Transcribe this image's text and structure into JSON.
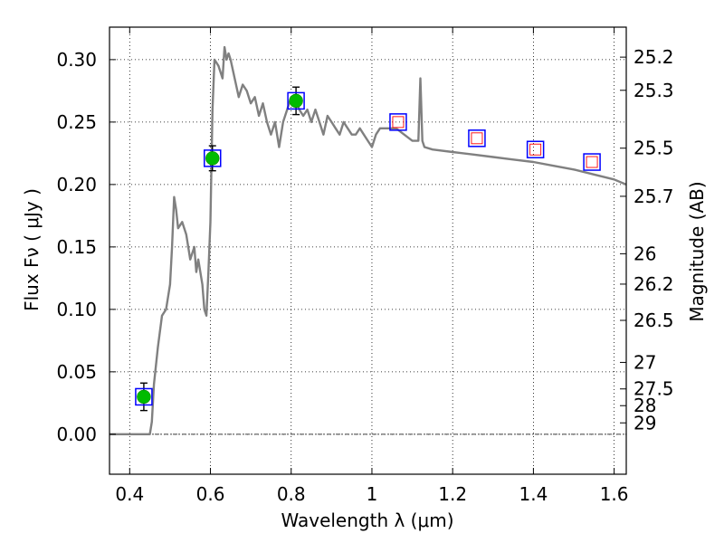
{
  "chart_data": {
    "type": "scatter",
    "xlabel": "Wavelength  λ (μm)",
    "ylabel": "Flux  Fν  ( μJy )",
    "y2label": "Magnitude (AB)",
    "xlim": [
      0.35,
      1.63
    ],
    "ylim": [
      -0.032,
      0.326
    ],
    "grid": true,
    "x_ticks": [
      {
        "value": 0.4,
        "label": "0.4"
      },
      {
        "value": 0.6,
        "label": "0.6"
      },
      {
        "value": 0.8,
        "label": "0.8"
      },
      {
        "value": 1.0,
        "label": "1"
      },
      {
        "value": 1.2,
        "label": "1.2"
      },
      {
        "value": 1.4,
        "label": "1.4"
      },
      {
        "value": 1.6,
        "label": "1.6"
      }
    ],
    "y_ticks": [
      {
        "value": 0.0,
        "label": "0.00"
      },
      {
        "value": 0.05,
        "label": "0.05"
      },
      {
        "value": 0.1,
        "label": "0.10"
      },
      {
        "value": 0.15,
        "label": "0.15"
      },
      {
        "value": 0.2,
        "label": "0.20"
      },
      {
        "value": 0.25,
        "label": "0.25"
      },
      {
        "value": 0.3,
        "label": "0.30"
      }
    ],
    "mag_ticks": [
      "25.2",
      "25.3",
      "25.5",
      "25.7",
      "26",
      "26.2",
      "26.5",
      "27",
      "27.5",
      "28",
      "29"
    ],
    "template_spectrum": {
      "color": "#808080",
      "x": [
        0.35,
        0.45,
        0.455,
        0.46,
        0.47,
        0.48,
        0.49,
        0.5,
        0.505,
        0.51,
        0.515,
        0.52,
        0.53,
        0.54,
        0.55,
        0.56,
        0.565,
        0.57,
        0.58,
        0.585,
        0.59,
        0.595,
        0.6,
        0.605,
        0.61,
        0.62,
        0.63,
        0.635,
        0.64,
        0.645,
        0.65,
        0.66,
        0.67,
        0.68,
        0.69,
        0.7,
        0.71,
        0.72,
        0.73,
        0.74,
        0.75,
        0.76,
        0.77,
        0.78,
        0.79,
        0.8,
        0.81,
        0.82,
        0.83,
        0.84,
        0.85,
        0.86,
        0.87,
        0.88,
        0.89,
        0.9,
        0.91,
        0.92,
        0.93,
        0.94,
        0.95,
        0.96,
        0.97,
        0.98,
        0.99,
        1.0,
        1.01,
        1.02,
        1.04,
        1.06,
        1.08,
        1.1,
        1.115,
        1.12,
        1.125,
        1.13,
        1.15,
        1.2,
        1.25,
        1.3,
        1.35,
        1.4,
        1.45,
        1.5,
        1.55,
        1.6,
        1.63
      ],
      "y": [
        0.0,
        0.0,
        0.01,
        0.04,
        0.07,
        0.095,
        0.1,
        0.12,
        0.15,
        0.19,
        0.18,
        0.165,
        0.17,
        0.16,
        0.14,
        0.15,
        0.13,
        0.14,
        0.12,
        0.1,
        0.095,
        0.13,
        0.17,
        0.26,
        0.3,
        0.295,
        0.285,
        0.31,
        0.3,
        0.305,
        0.3,
        0.285,
        0.27,
        0.28,
        0.275,
        0.265,
        0.27,
        0.255,
        0.265,
        0.25,
        0.24,
        0.25,
        0.23,
        0.25,
        0.26,
        0.27,
        0.27,
        0.26,
        0.255,
        0.26,
        0.25,
        0.26,
        0.25,
        0.24,
        0.255,
        0.25,
        0.245,
        0.24,
        0.25,
        0.245,
        0.24,
        0.24,
        0.245,
        0.24,
        0.235,
        0.23,
        0.24,
        0.245,
        0.245,
        0.245,
        0.24,
        0.235,
        0.235,
        0.285,
        0.235,
        0.23,
        0.228,
        0.226,
        0.224,
        0.222,
        0.22,
        0.218,
        0.215,
        0.212,
        0.208,
        0.204,
        0.2
      ]
    },
    "series": [
      {
        "marker": "circle-with-errorbar",
        "color": "#00bb00",
        "box_color": "#0000ff",
        "x": [
          0.435,
          0.605,
          0.812
        ],
        "y": [
          0.03,
          0.221,
          0.267
        ],
        "yerr": [
          0.011,
          0.01,
          0.011
        ]
      },
      {
        "marker": "open-square",
        "color": "#ff0000",
        "box_color": "#0000ff",
        "x": [
          1.065,
          1.26,
          1.405,
          1.545
        ],
        "y": [
          0.25,
          0.237,
          0.228,
          0.218
        ]
      }
    ]
  }
}
